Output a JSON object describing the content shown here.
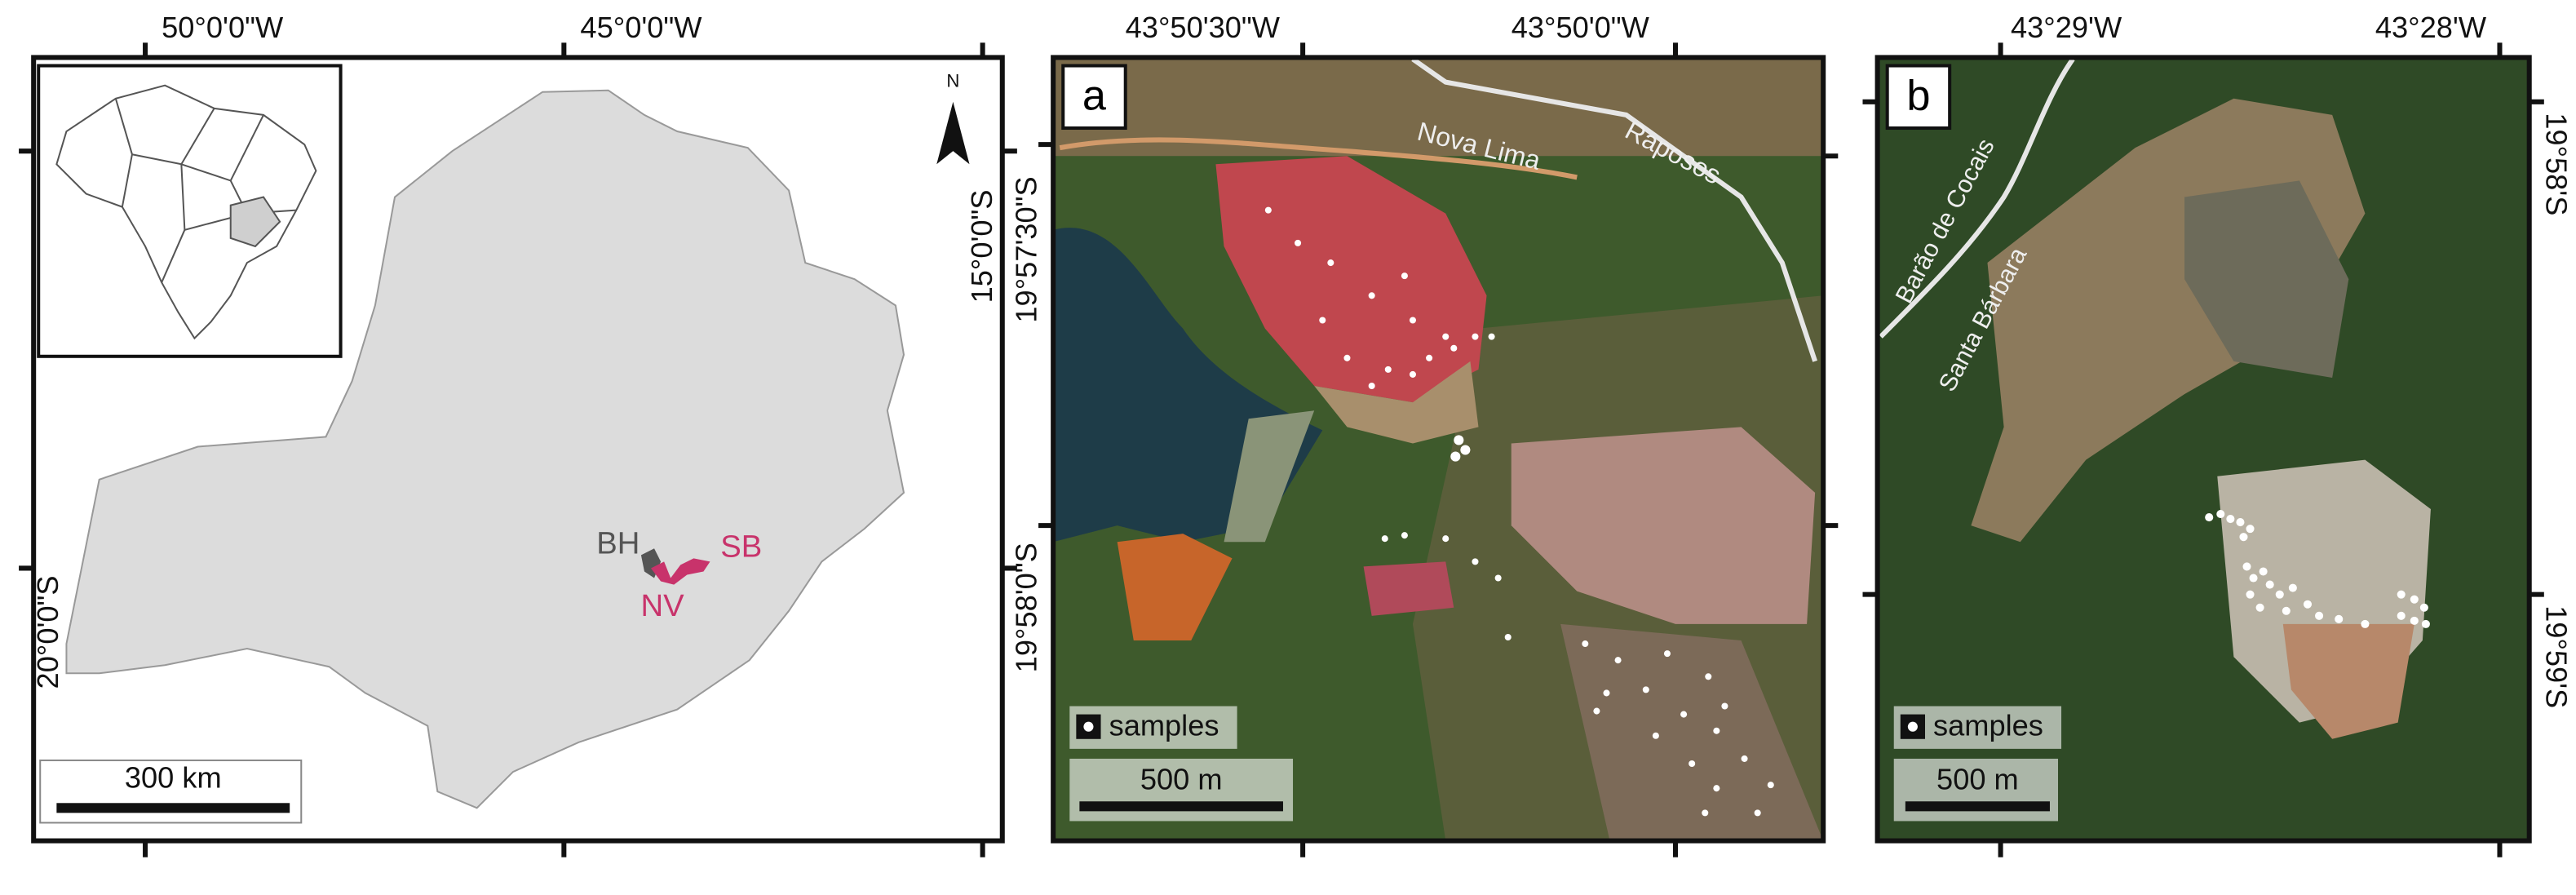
{
  "panels": [
    {
      "top_labels": [
        "50°0'0\"W",
        "45°0'0\"W"
      ],
      "left_label": "20°0'0\"S",
      "right_label": "15°0'0\"S",
      "north": "N",
      "places": [
        "BH",
        "SB",
        "NV"
      ],
      "scale_bar": "300 km"
    },
    {
      "letter": "a",
      "top_labels": [
        "43°50'30\"W",
        "43°50'0\"W"
      ],
      "left_labels": [
        "19°57'30\"S",
        "19°58'0\"S"
      ],
      "roads": [
        "Nova Lima",
        "Raposos"
      ],
      "legend": "samples",
      "scale_bar": "500 m"
    },
    {
      "letter": "b",
      "top_labels": [
        "43°29'W",
        "43°28'W"
      ],
      "right_labels": [
        "19°58'S",
        "19°59'S"
      ],
      "roads": [
        "Barão de Cocais",
        "Santa Bárbara"
      ],
      "legend": "samples",
      "scale_bar": "500 m"
    }
  ]
}
